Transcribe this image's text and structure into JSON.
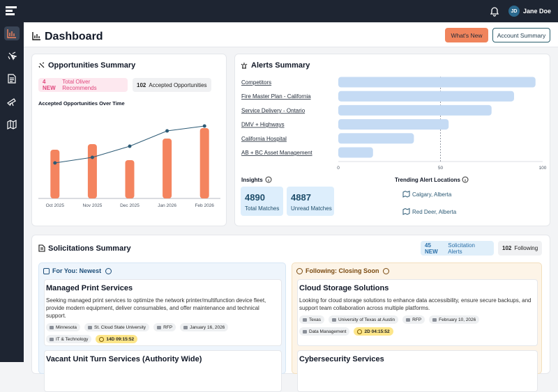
{
  "topbar": {
    "user_initials": "JD",
    "user_name": "Jane Doe"
  },
  "header": {
    "title": "Dashboard",
    "buttons": [
      "What's New",
      "Account Summary"
    ]
  },
  "opportunities": {
    "title": "Opportunities Summary",
    "badges": [
      {
        "count": "4 NEW",
        "label": "Total Oliver Recommends"
      },
      {
        "count": 102,
        "label": "Accepted Opportunities"
      }
    ]
  },
  "alerts": {
    "title": "Alerts Summary",
    "insights": {
      "title": "Insights",
      "stats": [
        {
          "value": 4890,
          "label": "Total Matches"
        },
        {
          "value": 4887,
          "label": "Unread Matches"
        }
      ]
    },
    "trending": {
      "title": "Trending Alert Locations",
      "locations": [
        "Calgary, Alberta",
        "Red Deer, Alberta"
      ]
    }
  },
  "chart_data": [
    {
      "type": "bar",
      "title": "Accepted Opportunities Over Time",
      "categories": [
        "Oct 2025",
        "Nov 2025",
        "Dec 2025",
        "Jan 2026",
        "Feb 2026"
      ],
      "series": [
        {
          "type": "bar",
          "color": "#f4845f",
          "values": [
            70,
            78,
            55,
            86,
            101
          ]
        },
        {
          "type": "line",
          "color": "#2c5a75",
          "values": [
            51,
            59,
            75,
            97,
            104
          ]
        }
      ],
      "ylim": [
        0,
        125
      ]
    },
    {
      "type": "hbar",
      "categories": [
        "Competitors",
        "Fire Master Plan - California",
        "Service Delivery - Ontario",
        "DMV + Highways",
        "California Hospital",
        "AB + BC Asset Management"
      ],
      "values": [
        96.5,
        86,
        75,
        54,
        37,
        17
      ],
      "color": "#c5dbf4",
      "xlim": [
        0,
        100
      ],
      "xticks": [
        0,
        50,
        100
      ],
      "grid": true
    }
  ],
  "solicitations": {
    "title": "Solicitations Summary",
    "badges": [
      {
        "count": "45 NEW",
        "label": "Solicitation Alerts"
      },
      {
        "count": 102,
        "label": "Following"
      }
    ],
    "panels": [
      {
        "title": "For You: Newest",
        "cards": [
          {
            "title": "Managed Print Services",
            "description": "Seeking managed print services to optimize the network printer/multifunction device fleet, provide modern equipment, deliver consumables, and offer maintenance and technical support.",
            "tags": [
              "Minnesota",
              "St. Cloud State University",
              "RFP",
              "January 16, 2026",
              "IT & Technology"
            ],
            "countdown": "14D 09:15:52"
          },
          {
            "title": "Vacant Unit Turn Services (Authority Wide)"
          }
        ]
      },
      {
        "title": "Following: Closing Soon",
        "cards": [
          {
            "title": "Cloud Storage Solutions",
            "description": "Looking for cloud storage solutions to enhance data accessibility, ensure secure backups, and support team collaboration across multiple platforms.",
            "tags": [
              "Texas",
              "University of Texas at Austin",
              "RFP",
              "February 10, 2026",
              "Data Management"
            ],
            "countdown": "2D 04:15:52"
          },
          {
            "title": "Cybersecurity Services"
          }
        ]
      }
    ]
  }
}
